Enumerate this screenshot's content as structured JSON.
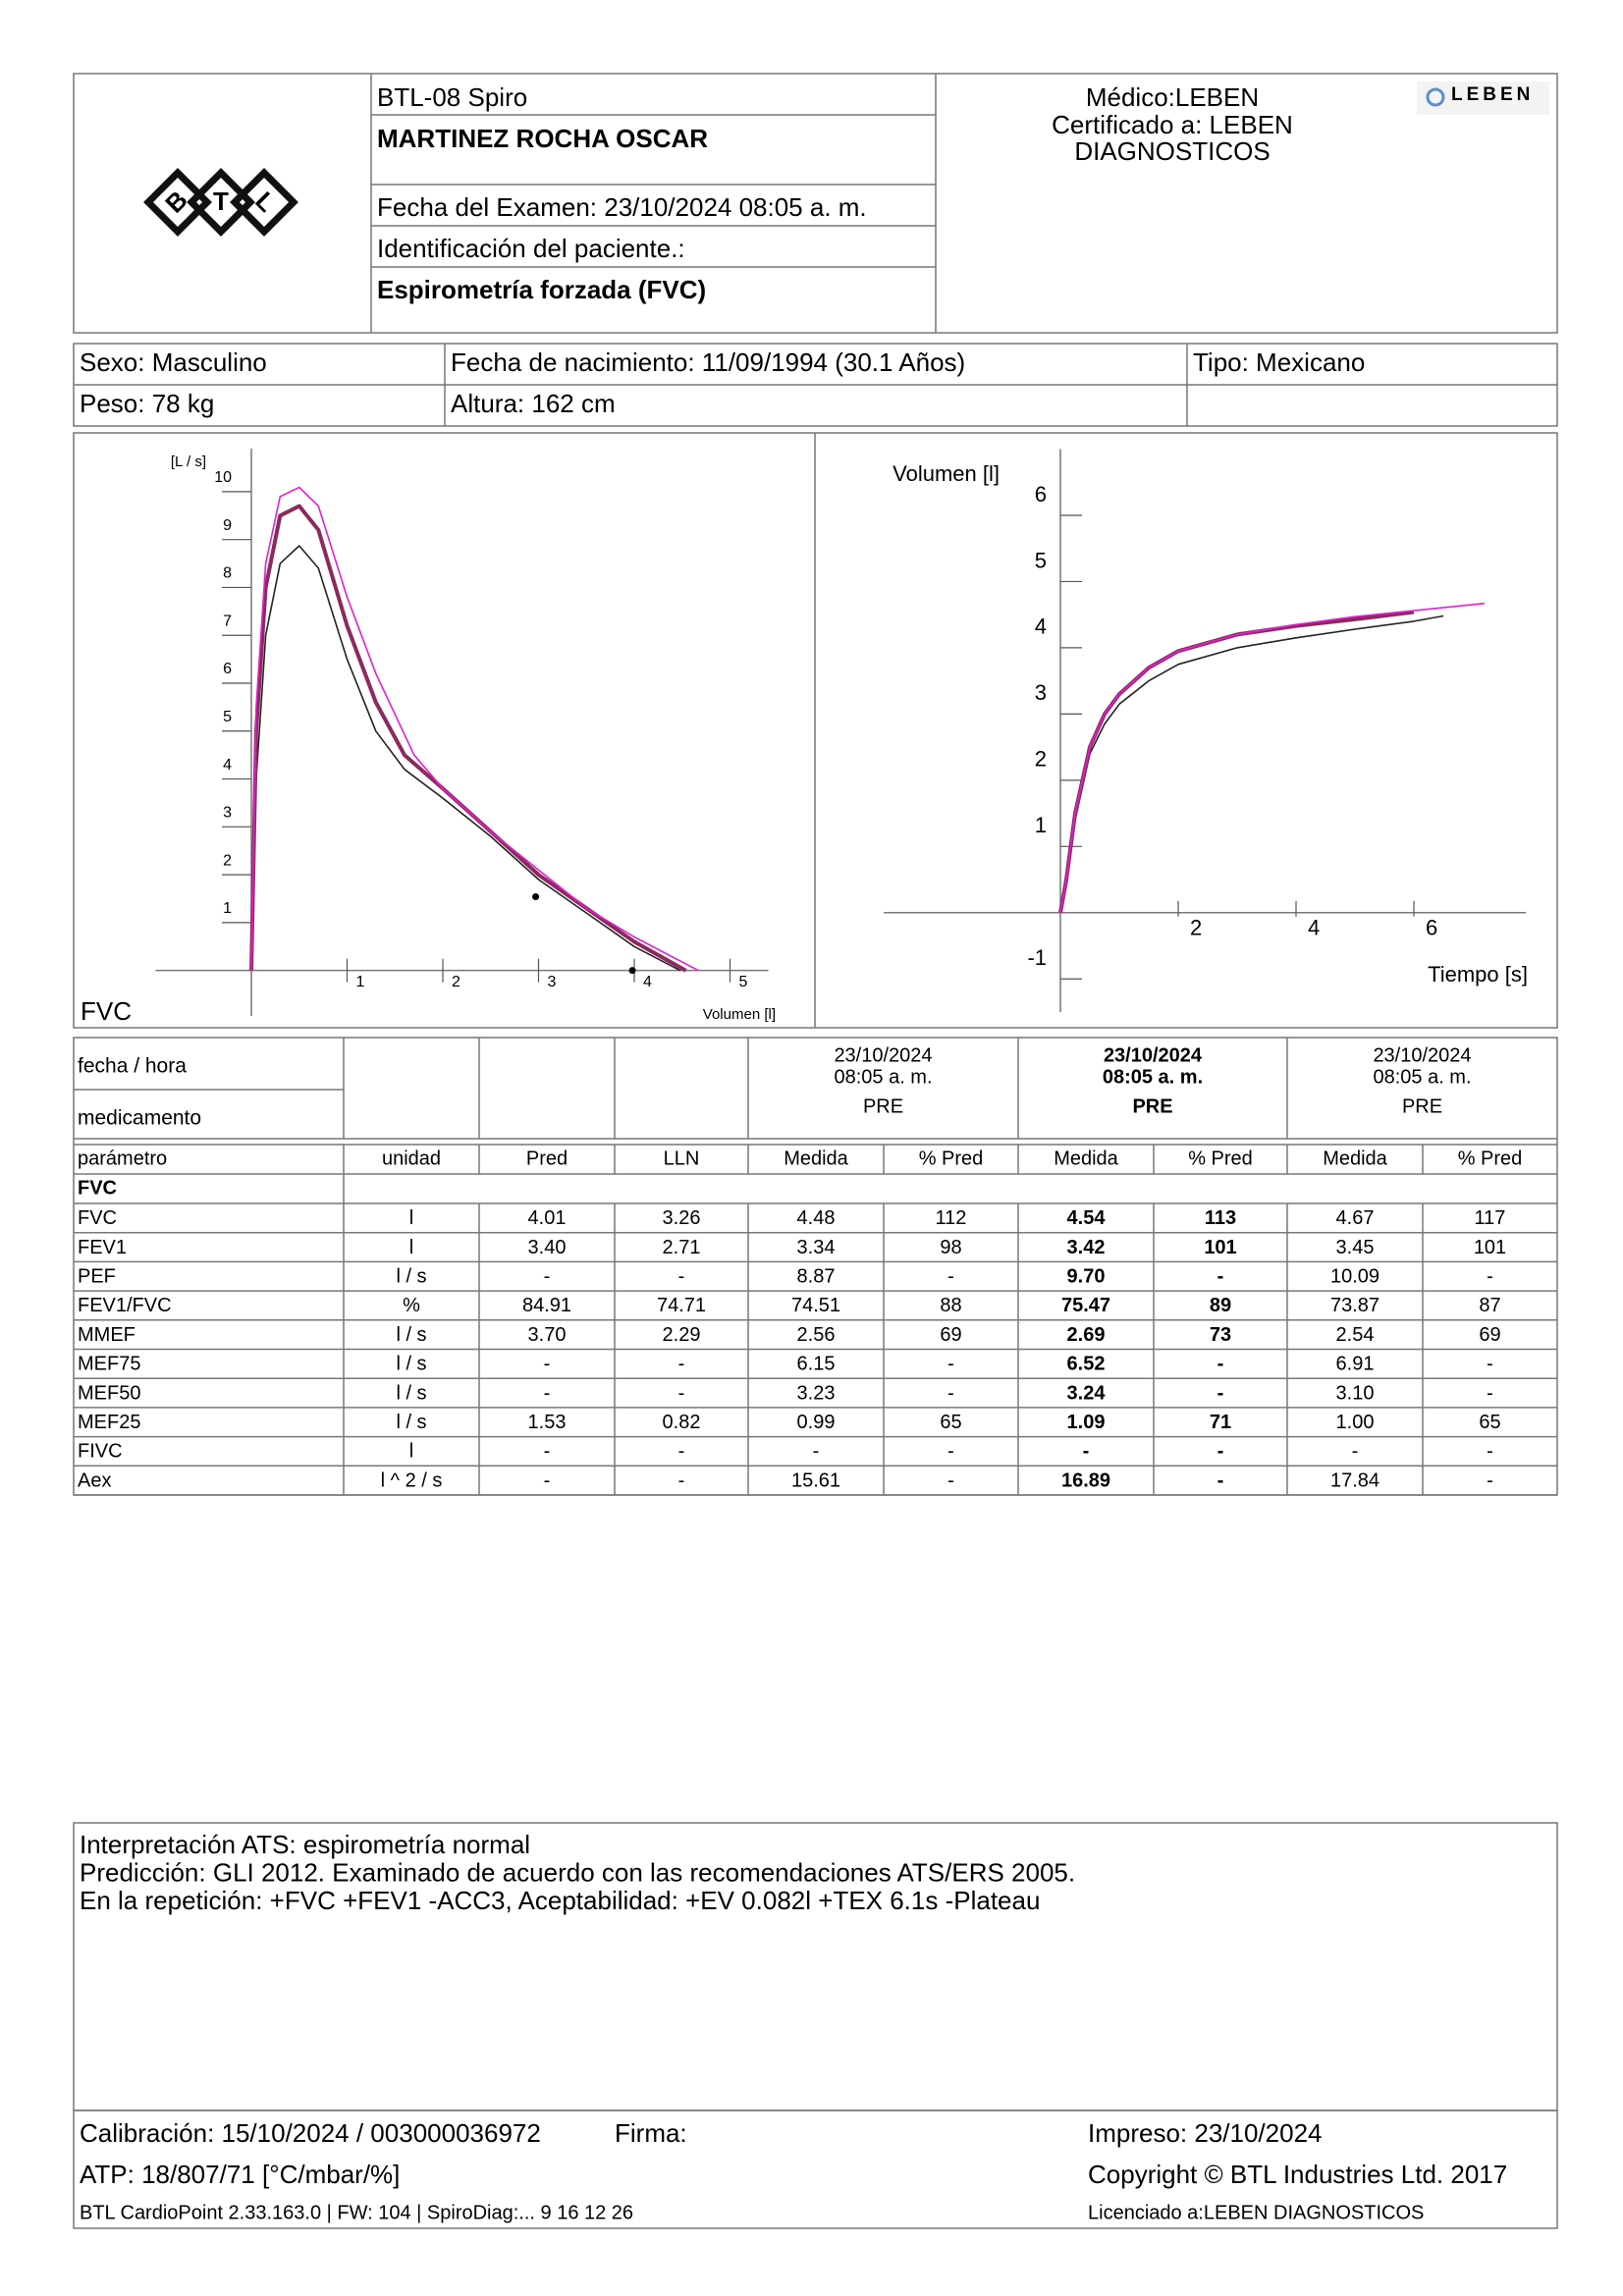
{
  "header": {
    "device": "BTL-08 Spiro",
    "patient_name": "MARTINEZ ROCHA OSCAR",
    "exam_date": "Fecha del Examen:  23/10/2024 08:05 a. m.",
    "patient_id": "Identificación del paciente.:",
    "test_name": "Espirometría forzada (FVC)",
    "doctor_lines": [
      "Médico:LEBEN",
      "Certificado a: LEBEN",
      "DIAGNOSTICOS"
    ],
    "lab_logo": "LEBEN",
    "btl_logo": [
      "B",
      "T",
      "L"
    ]
  },
  "patient": {
    "rows": [
      [
        "Sexo: Masculino",
        "Fecha de nacimiento: 11/09/1994 (30.1 Años)",
        "Tipo: Mexicano"
      ],
      [
        "Peso: 78 kg",
        "Altura: 162 cm"
      ]
    ]
  },
  "chart_data": [
    {
      "type": "line",
      "y_label": "[L / s]",
      "x_label": "Volumen [l]",
      "corner_label": "FVC",
      "xlim": [
        -1,
        5.4
      ],
      "ylim": [
        -0.95,
        10.9
      ],
      "xticks": [
        1,
        2,
        3,
        4,
        5
      ],
      "yticks": [
        1,
        2,
        3,
        4,
        5,
        6,
        7,
        8,
        9,
        10
      ],
      "series": [
        {
          "color": "#222222",
          "width": 1.6,
          "x": [
            0,
            0.05,
            0.15,
            0.3,
            0.5,
            0.7,
            1,
            1.3,
            1.6,
            2,
            2.5,
            3,
            3.5,
            4,
            4.48
          ],
          "values": [
            0,
            4,
            7,
            8.5,
            8.87,
            8.4,
            6.5,
            5,
            4.2,
            3.6,
            2.8,
            1.9,
            1.2,
            0.5,
            0
          ]
        },
        {
          "color": "#8b2a5e",
          "width": 4,
          "x": [
            0,
            0.05,
            0.15,
            0.3,
            0.5,
            0.7,
            1,
            1.3,
            1.6,
            2,
            2.5,
            3,
            3.5,
            4,
            4.54
          ],
          "values": [
            0,
            5,
            8,
            9.5,
            9.7,
            9.2,
            7.2,
            5.6,
            4.5,
            3.8,
            2.9,
            2,
            1.3,
            0.6,
            0
          ]
        },
        {
          "color": "#e020d0",
          "width": 1.6,
          "x": [
            0,
            0.05,
            0.15,
            0.3,
            0.5,
            0.7,
            1,
            1.3,
            1.7,
            2,
            2.5,
            3,
            3.5,
            4,
            4.67
          ],
          "values": [
            0,
            5.5,
            8.5,
            9.9,
            10.09,
            9.7,
            7.8,
            6.2,
            4.5,
            3.8,
            2.9,
            2.1,
            1.3,
            0.7,
            0
          ]
        },
        {
          "color": "#000000",
          "marker": true,
          "x": [
            2.97,
            3.98
          ],
          "values": [
            1.54,
            0
          ]
        }
      ]
    },
    {
      "type": "line",
      "y_label": "Volumen [l]",
      "x_label": "Tiempo [s]",
      "xlim": [
        -3,
        7.9
      ],
      "ylim": [
        -1.5,
        7
      ],
      "xticks": [
        2,
        4,
        6
      ],
      "yticks": [
        -1,
        1,
        2,
        3,
        4,
        5,
        6
      ],
      "series": [
        {
          "color": "#222222",
          "width": 1.6,
          "x": [
            0,
            0.1,
            0.25,
            0.5,
            0.75,
            1,
            1.5,
            2,
            3,
            4,
            5,
            6,
            6.5
          ],
          "values": [
            0,
            0.4,
            1.4,
            2.4,
            2.85,
            3.15,
            3.5,
            3.75,
            4,
            4.15,
            4.28,
            4.4,
            4.48
          ]
        },
        {
          "color": "#8b2a5e",
          "width": 4,
          "x": [
            0,
            0.1,
            0.25,
            0.5,
            0.75,
            1,
            1.5,
            2,
            3,
            4,
            5,
            6
          ],
          "values": [
            0,
            0.5,
            1.5,
            2.5,
            3,
            3.3,
            3.7,
            3.95,
            4.2,
            4.33,
            4.43,
            4.54
          ]
        },
        {
          "color": "#e020d0",
          "width": 1.6,
          "x": [
            0,
            0.1,
            0.25,
            0.5,
            0.75,
            1,
            1.5,
            2,
            3,
            4,
            5,
            6,
            7.2
          ],
          "values": [
            0,
            0.5,
            1.5,
            2.5,
            3,
            3.3,
            3.7,
            3.95,
            4.2,
            4.35,
            4.47,
            4.56,
            4.67
          ]
        }
      ]
    }
  ],
  "results": {
    "row_labels": [
      "fecha / hora",
      "medicamento"
    ],
    "trials": [
      {
        "date": "23/10/2024",
        "time": "08:05 a. m.",
        "medication": "PRE",
        "color": "#000000",
        "bold": false
      },
      {
        "date": "23/10/2024",
        "time": "08:05 a. m.",
        "medication": "PRE",
        "color": "#8b2a5e",
        "bold": true
      },
      {
        "date": "23/10/2024",
        "time": "08:05 a. m.",
        "medication": "PRE",
        "color": "#e020d0",
        "bold": false
      }
    ],
    "columns": [
      "parámetro",
      "unidad",
      "Pred",
      "LLN",
      "Medida",
      "% Pred",
      "Medida",
      "% Pred",
      "Medida",
      "% Pred"
    ],
    "group": "FVC",
    "rows": [
      [
        "FVC",
        "l",
        "4.01",
        "3.26",
        "4.48",
        "112",
        "4.54",
        "113",
        "4.67",
        "117"
      ],
      [
        "FEV1",
        "l",
        "3.40",
        "2.71",
        "3.34",
        "98",
        "3.42",
        "101",
        "3.45",
        "101"
      ],
      [
        "PEF",
        "l / s",
        "-",
        "-",
        "8.87",
        "-",
        "9.70",
        "-",
        "10.09",
        "-"
      ],
      [
        "FEV1/FVC",
        "%",
        "84.91",
        "74.71",
        "74.51",
        "88",
        "75.47",
        "89",
        "73.87",
        "87"
      ],
      [
        "MMEF",
        "l / s",
        "3.70",
        "2.29",
        "2.56",
        "69",
        "2.69",
        "73",
        "2.54",
        "69"
      ],
      [
        "MEF75",
        "l / s",
        "-",
        "-",
        "6.15",
        "-",
        "6.52",
        "-",
        "6.91",
        "-"
      ],
      [
        "MEF50",
        "l / s",
        "-",
        "-",
        "3.23",
        "-",
        "3.24",
        "-",
        "3.10",
        "-"
      ],
      [
        "MEF25",
        "l / s",
        "1.53",
        "0.82",
        "0.99",
        "65",
        "1.09",
        "71",
        "1.00",
        "65"
      ],
      [
        "FIVC",
        "l",
        "-",
        "-",
        "-",
        "-",
        "-",
        "-",
        "-",
        "-"
      ],
      [
        "Aex",
        "l ^ 2 / s",
        "-",
        "-",
        "15.61",
        "-",
        "16.89",
        "-",
        "17.84",
        "-"
      ]
    ]
  },
  "interpretation": [
    "Interpretación ATS: espirometría normal",
    "Predicción: GLI 2012. Examinado de acuerdo con las recomendaciones ATS/ERS 2005.",
    "En la repetición: +FVC +FEV1 -ACC3, Aceptabilidad: +EV 0.082l +TEX 6.1s -Plateau"
  ],
  "footer": {
    "calibration": "Calibración: 15/10/2024 / 003000036972",
    "signature": "Firma:",
    "atp": "ATP: 18/807/71 [°C/mbar/%]",
    "software": "BTL CardioPoint 2.33.163.0 | FW: 104 | SpiroDiag:... 9 16 12 26",
    "printed": "Impreso: 23/10/2024",
    "copyright": "Copyright © BTL Industries Ltd. 2017",
    "licensed": "Licenciado a:LEBEN DIAGNOSTICOS"
  }
}
